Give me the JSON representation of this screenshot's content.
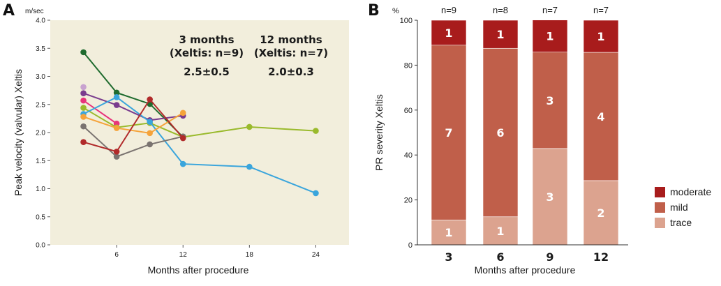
{
  "panel_labels": {
    "a": "A",
    "b": "B"
  },
  "chart_data": [
    {
      "type": "line",
      "unit": "m/sec",
      "ylabel": "Peak velocity (valvular) Xeltis",
      "xlabel": "Months after procedure",
      "xticks": [
        "6",
        "12",
        "18",
        "24"
      ],
      "yticks": [
        "0.0",
        "0.5",
        "1.0",
        "1.5",
        "2.0",
        "2.5",
        "3.0",
        "3.5",
        "4.0"
      ],
      "xlim": [
        0,
        27
      ],
      "ylim": [
        0,
        4.0
      ],
      "background": "#f2eedc",
      "annotations": [
        {
          "line1": "3 months",
          "line2": "(Xeltis: n=9)",
          "value": "2.5±0.5"
        },
        {
          "line1": "12 months",
          "line2": "(Xeltis: n=7)",
          "value": "2.0±0.3"
        }
      ],
      "series": [
        {
          "color": "#1f6b2e",
          "x": [
            3,
            6,
            9,
            12
          ],
          "y": [
            3.43,
            2.71,
            2.51,
            1.92
          ]
        },
        {
          "color": "#c8a2cf",
          "x": [
            3
          ],
          "y": [
            2.81
          ]
        },
        {
          "color": "#7a3c8e",
          "x": [
            3,
            6,
            9,
            12
          ],
          "y": [
            2.7,
            2.49,
            2.22,
            2.3
          ]
        },
        {
          "color": "#e8347a",
          "x": [
            3,
            6
          ],
          "y": [
            2.57,
            2.16
          ]
        },
        {
          "color": "#9aba2c",
          "x": [
            3,
            6,
            9,
            12,
            18,
            24
          ],
          "y": [
            2.44,
            2.09,
            2.17,
            1.92,
            2.1,
            2.03
          ]
        },
        {
          "color": "#3aa5dc",
          "x": [
            3,
            6,
            9,
            12,
            18,
            24
          ],
          "y": [
            2.33,
            2.63,
            2.19,
            1.44,
            1.39,
            0.92
          ]
        },
        {
          "color": "#f5a33a",
          "x": [
            3,
            6,
            9,
            12
          ],
          "y": [
            2.28,
            2.08,
            1.99,
            2.35
          ]
        },
        {
          "color": "#7a7370",
          "x": [
            3,
            6,
            9,
            12
          ],
          "y": [
            2.11,
            1.57,
            1.79,
            1.93
          ]
        },
        {
          "color": "#b12a2a",
          "x": [
            3,
            6,
            9,
            12
          ],
          "y": [
            1.83,
            1.66,
            2.59,
            1.9
          ]
        }
      ]
    },
    {
      "type": "bar",
      "stacked": true,
      "unit": "%",
      "ylabel": "PR severity Xeltis",
      "xlabel": "Months after procedure",
      "categories": [
        "3",
        "6",
        "9",
        "12"
      ],
      "n_labels": [
        "n=9",
        "n=8",
        "n=7",
        "n=7"
      ],
      "yticks": [
        "0",
        "20",
        "40",
        "60",
        "80",
        "100"
      ],
      "ylim": [
        0,
        100
      ],
      "series": [
        {
          "name": "trace",
          "color": "#dca38f",
          "values": [
            11.1,
            12.5,
            42.9,
            28.6
          ],
          "labels": [
            "1",
            "1",
            "3",
            "2"
          ]
        },
        {
          "name": "mild",
          "color": "#c05f4a",
          "values": [
            77.8,
            75.0,
            42.9,
            57.1
          ],
          "labels": [
            "7",
            "6",
            "3",
            "4"
          ]
        },
        {
          "name": "moderate",
          "color": "#a81c1c",
          "values": [
            11.1,
            12.5,
            14.3,
            14.3
          ],
          "labels": [
            "1",
            "1",
            "1",
            "1"
          ]
        }
      ],
      "legend": [
        "moderate",
        "mild",
        "trace"
      ]
    }
  ]
}
